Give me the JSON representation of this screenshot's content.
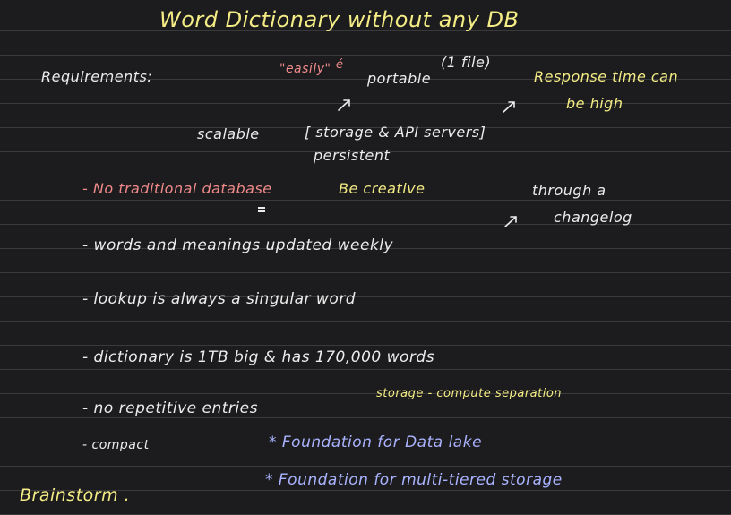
{
  "title": "Word Dictionary without any DB",
  "requirements_label": "Requirements:",
  "easily": "\"easily\"",
  "easily_mark": "é",
  "portable": "portable",
  "one_file": "(1 file)",
  "response_time_line1": "Response time can",
  "response_time_line2": "be high",
  "scalable": "scalable",
  "storage_api": "[ storage & API servers]",
  "persistent": "persistent",
  "no_traditional_db": "- No traditional database",
  "be_creative": "Be creative",
  "through_changelog_line1": "through a",
  "through_changelog_line2": "changelog",
  "words_updated": "- words and meanings updated weekly",
  "lookup": "- lookup is always a singular word",
  "dictionary_size": "- dictionary is 1TB big & has 170,000 words",
  "no_repetitive": "- no repetitive entries",
  "storage_compute": "storage - compute separation",
  "compact": "- compact",
  "foundation_lake": "* Foundation for Data lake",
  "foundation_storage": "* Foundation for multi-tiered storage",
  "brainstorm": "Brainstorm .",
  "colors": {
    "background": "#1c1c1e",
    "rule_line": "#3a3a3d",
    "white_ink": "#ececec",
    "yellow_ink": "#f4ec84",
    "red_ink": "#f08a8a",
    "blue_ink": "#aab3ff"
  },
  "icons": [
    "arrow-up-right-icon"
  ]
}
